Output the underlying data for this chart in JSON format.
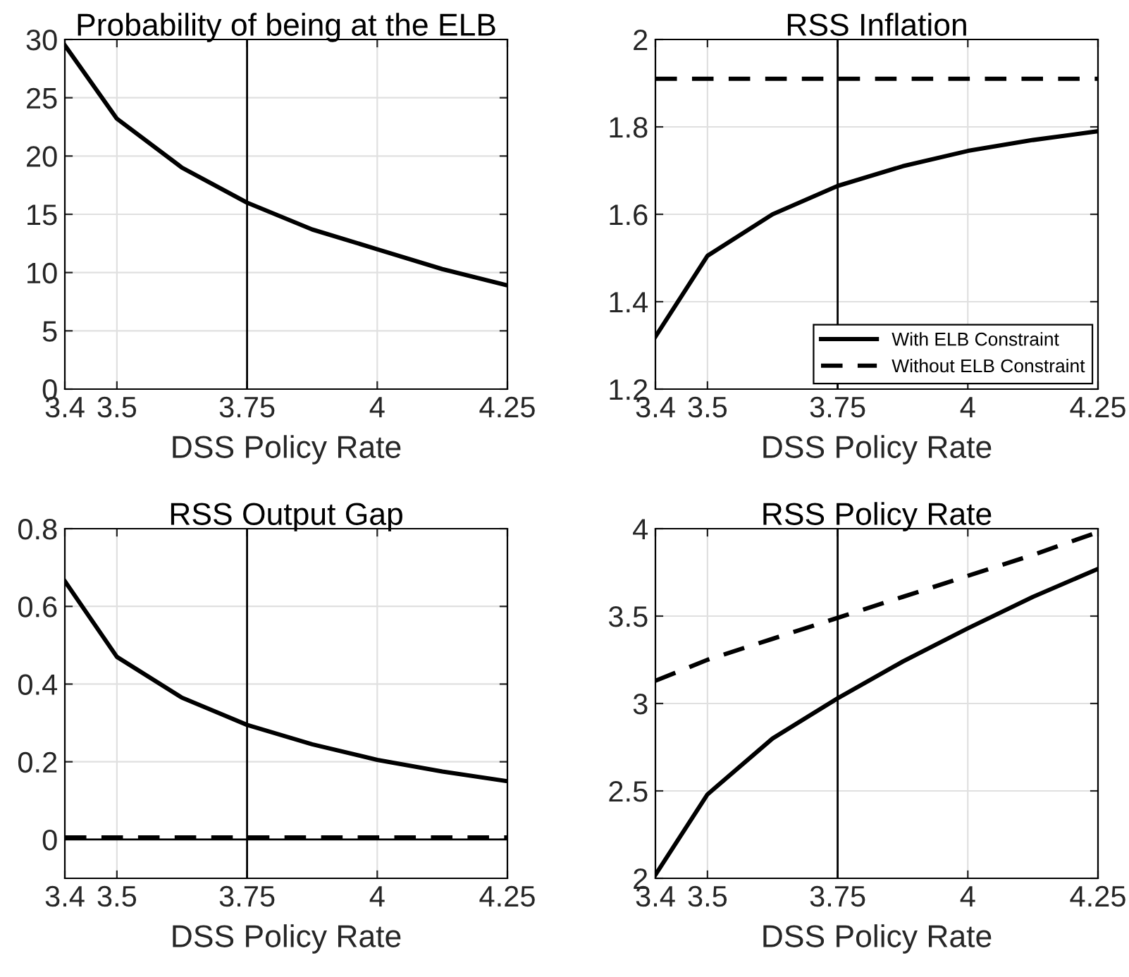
{
  "chart_data": [
    {
      "type": "line",
      "title": "Probability of being at the ELB",
      "xlabel": "DSS Policy Rate",
      "x": [
        3.4,
        3.5,
        3.625,
        3.75,
        3.875,
        4,
        4.125,
        4.25
      ],
      "xlim": [
        3.4,
        4.25
      ],
      "xticks": [
        3.4,
        3.5,
        3.75,
        4,
        4.25
      ],
      "ylim": [
        0,
        30
      ],
      "yticks": [
        0,
        5,
        10,
        15,
        20,
        25,
        30
      ],
      "grid": true,
      "legend": false,
      "series": [
        {
          "color": "#000000",
          "line_style": "solid",
          "values": [
            29.5,
            23.2,
            19,
            16,
            13.7,
            12,
            10.3,
            8.9
          ]
        }
      ],
      "ref_lines": [
        {
          "axis": "x",
          "value": 3.75,
          "color": "#000000",
          "line_style": "solid"
        }
      ]
    },
    {
      "type": "line",
      "title": "RSS Inflation",
      "xlabel": "DSS Policy Rate",
      "x": [
        3.4,
        3.5,
        3.625,
        3.75,
        3.875,
        4,
        4.125,
        4.25
      ],
      "xlim": [
        3.4,
        4.25
      ],
      "xticks": [
        3.4,
        3.5,
        3.75,
        4,
        4.25
      ],
      "ylim": [
        1.2,
        2
      ],
      "yticks": [
        1.2,
        1.4,
        1.6,
        1.8,
        2
      ],
      "grid": true,
      "legend": "bottom right",
      "series": [
        {
          "name": "With ELB Constraint",
          "color": "#000000",
          "line_style": "solid",
          "values": [
            1.32,
            1.505,
            1.6,
            1.665,
            1.71,
            1.745,
            1.77,
            1.79
          ]
        },
        {
          "name": "Without ELB Constraint",
          "color": "#000000",
          "line_style": "dashed",
          "values": [
            1.91,
            1.91,
            1.91,
            1.91,
            1.91,
            1.91,
            1.91,
            1.91
          ]
        }
      ],
      "ref_lines": [
        {
          "axis": "x",
          "value": 3.75,
          "color": "#000000",
          "line_style": "solid"
        }
      ]
    },
    {
      "type": "line",
      "title": "RSS Output Gap",
      "xlabel": "DSS Policy Rate",
      "x": [
        3.4,
        3.5,
        3.625,
        3.75,
        3.875,
        4,
        4.125,
        4.25
      ],
      "xlim": [
        3.4,
        4.25
      ],
      "xticks": [
        3.4,
        3.5,
        3.75,
        4,
        4.25
      ],
      "ylim": [
        -0.1,
        0.8
      ],
      "yticks": [
        0,
        0.2,
        0.4,
        0.6,
        0.8
      ],
      "grid": true,
      "legend": false,
      "series": [
        {
          "color": "#000000",
          "line_style": "solid",
          "values": [
            0.665,
            0.47,
            0.365,
            0.295,
            0.245,
            0.205,
            0.175,
            0.15
          ]
        },
        {
          "color": "#000000",
          "line_style": "dashed",
          "values": [
            0.005,
            0.005,
            0.005,
            0.005,
            0.005,
            0.005,
            0.005,
            0.005
          ]
        }
      ],
      "ref_lines": [
        {
          "axis": "x",
          "value": 3.75,
          "color": "#000000",
          "line_style": "solid"
        },
        {
          "axis": "y",
          "value": 0,
          "color": "#000000",
          "line_style": "solid"
        }
      ]
    },
    {
      "type": "line",
      "title": "RSS Policy Rate",
      "xlabel": "DSS Policy Rate",
      "x": [
        3.4,
        3.5,
        3.625,
        3.75,
        3.875,
        4,
        4.125,
        4.25
      ],
      "xlim": [
        3.4,
        4.25
      ],
      "xticks": [
        3.4,
        3.5,
        3.75,
        4,
        4.25
      ],
      "ylim": [
        2,
        4
      ],
      "yticks": [
        2,
        2.5,
        3,
        3.5,
        4
      ],
      "grid": true,
      "legend": false,
      "series": [
        {
          "color": "#000000",
          "line_style": "solid",
          "values": [
            2.02,
            2.48,
            2.8,
            3.03,
            3.24,
            3.43,
            3.61,
            3.77
          ]
        },
        {
          "color": "#000000",
          "line_style": "dashed",
          "values": [
            3.13,
            3.25,
            3.37,
            3.49,
            3.61,
            3.73,
            3.85,
            3.98
          ]
        }
      ],
      "ref_lines": [
        {
          "axis": "x",
          "value": 3.75,
          "color": "#000000",
          "line_style": "solid"
        }
      ]
    }
  ]
}
